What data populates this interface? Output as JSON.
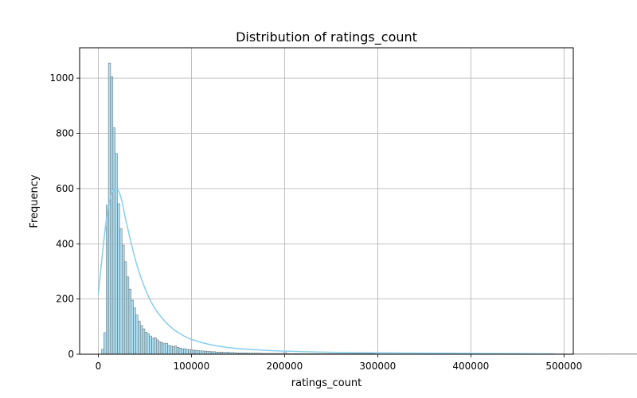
{
  "chart_data": {
    "type": "bar",
    "subtype": "histogram-with-kde",
    "title": "Distribution of ratings_count",
    "xlabel": "ratings_count",
    "ylabel": "Frequency",
    "xlim": [
      -20000,
      510000
    ],
    "ylim": [
      0,
      1110
    ],
    "xticks": [
      {
        "value": 0,
        "label": "0"
      },
      {
        "value": 100000,
        "label": "100000"
      },
      {
        "value": 200000,
        "label": "200000"
      },
      {
        "value": 300000,
        "label": "300000"
      },
      {
        "value": 400000,
        "label": "400000"
      },
      {
        "value": 500000,
        "label": "500000"
      }
    ],
    "yticks": [
      {
        "value": 0,
        "label": "0"
      },
      {
        "value": 200,
        "label": "200"
      },
      {
        "value": 400,
        "label": "400"
      },
      {
        "value": 600,
        "label": "600"
      },
      {
        "value": 800,
        "label": "800"
      },
      {
        "value": 1000,
        "label": "1000"
      }
    ],
    "grid": true,
    "bar_color": "#87CEEB",
    "bar_edge_color": "#666666",
    "kde_color": "#87CEEB",
    "bins": {
      "start": 3500,
      "width": 2450,
      "counts": [
        18,
        78,
        540,
        1055,
        1005,
        820,
        727,
        545,
        455,
        395,
        335,
        280,
        236,
        196,
        168,
        142,
        120,
        104,
        92,
        80,
        74,
        66,
        58,
        60,
        52,
        45,
        42,
        38,
        40,
        32,
        30,
        28,
        30,
        25,
        22,
        20,
        20,
        18,
        17,
        16,
        15,
        14,
        13,
        12,
        12,
        11,
        10,
        10,
        9,
        9,
        8,
        8,
        8,
        7,
        7,
        7,
        6,
        6,
        6,
        5,
        5,
        5,
        5,
        5,
        4,
        4,
        4,
        4,
        4,
        4,
        3,
        3,
        3,
        3,
        3,
        3,
        3,
        3,
        3,
        3,
        6,
        3,
        2,
        2,
        2,
        2,
        2,
        2,
        2,
        2,
        2,
        2,
        2,
        2,
        2,
        2,
        2,
        2,
        2,
        2,
        2,
        2,
        2,
        2,
        2,
        2,
        2,
        2,
        2,
        2,
        2,
        2,
        2,
        2,
        2,
        2,
        2,
        2,
        2,
        2,
        1,
        1,
        1,
        1,
        1,
        1,
        1,
        1,
        1,
        1,
        1,
        1,
        1,
        1,
        1,
        1,
        1,
        1,
        1,
        1,
        1,
        1,
        1,
        1,
        1,
        1,
        1,
        1,
        1,
        1,
        1,
        1,
        1,
        1,
        1,
        1,
        1,
        1,
        1,
        1,
        1,
        1,
        1,
        1,
        1,
        1,
        1,
        1,
        1,
        1,
        1,
        1,
        1,
        1,
        1,
        1,
        1,
        1,
        1,
        1,
        1,
        1,
        1,
        1,
        1,
        1,
        1,
        1,
        1,
        1,
        1,
        1,
        1,
        1,
        1,
        1,
        1,
        1,
        1,
        1,
        1,
        1,
        1,
        1,
        1,
        1,
        1,
        1,
        1,
        1,
        1,
        1,
        1,
        1,
        1,
        1,
        1,
        1,
        1,
        1,
        1,
        1,
        1,
        1,
        1,
        1,
        1,
        1,
        1,
        1,
        1,
        1,
        1,
        1,
        1,
        1,
        1,
        1,
        1,
        1,
        1,
        1,
        1,
        1,
        1,
        1,
        1,
        1,
        1,
        1,
        1
      ]
    },
    "kde": {
      "x": [
        0,
        5000,
        10000,
        15000,
        20000,
        25000,
        30000,
        40000,
        50000,
        60000,
        70000,
        80000,
        90000,
        100000,
        120000,
        140000,
        160000,
        200000,
        250000,
        300000,
        350000,
        400000,
        450000,
        490000
      ],
      "y": [
        215,
        380,
        520,
        585,
        600,
        560,
        480,
        340,
        240,
        170,
        125,
        92,
        70,
        54,
        35,
        24,
        18,
        11,
        7,
        5,
        4,
        3,
        2,
        1
      ]
    }
  }
}
